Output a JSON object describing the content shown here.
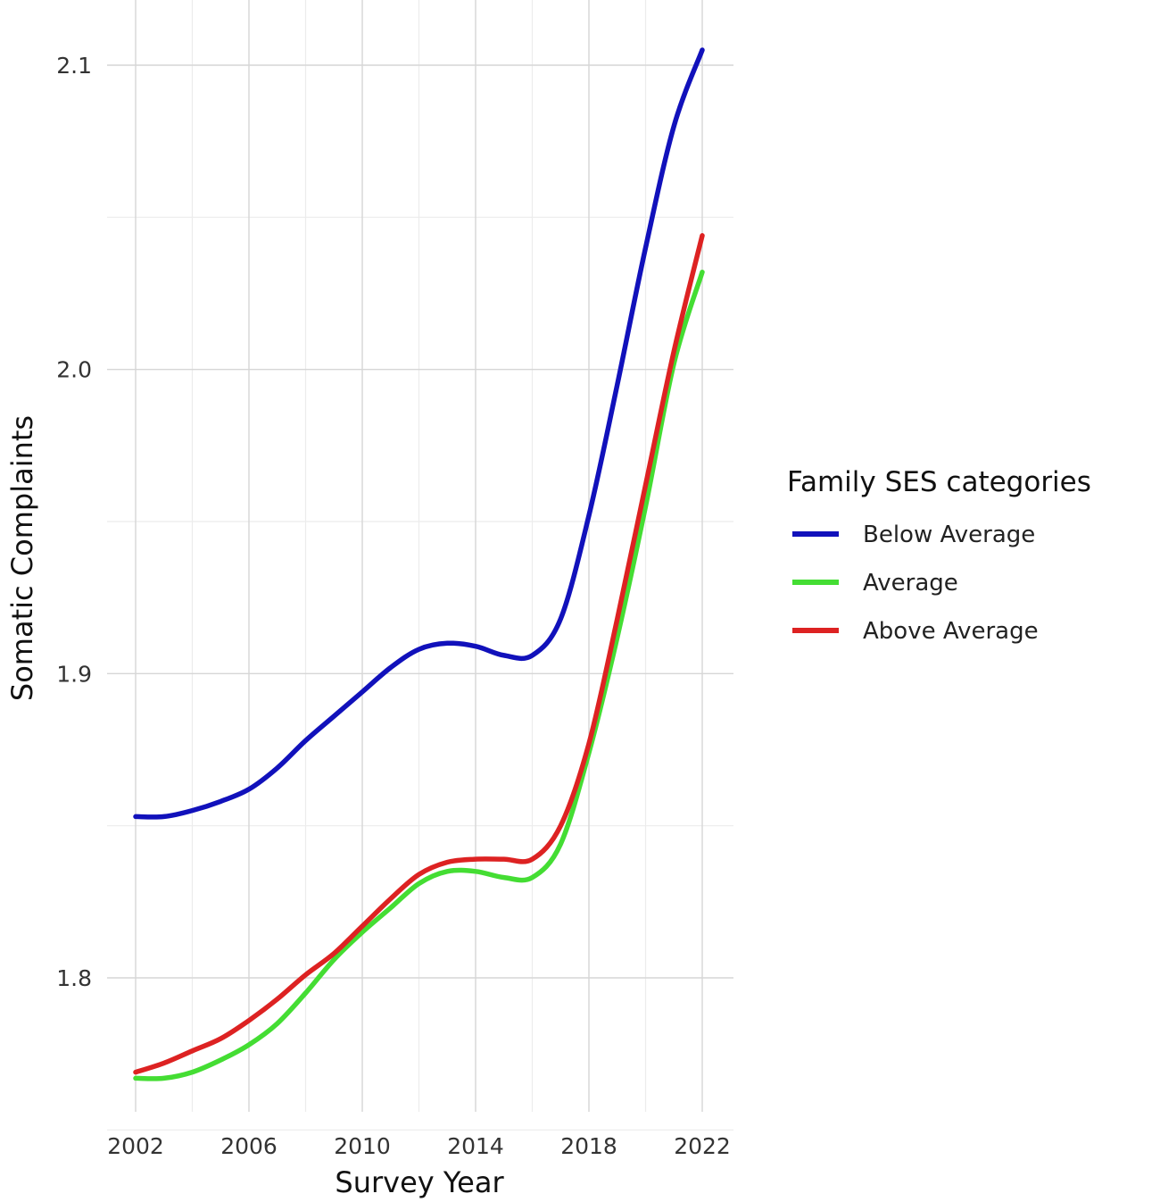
{
  "chart_data": {
    "type": "line",
    "xlabel": "Survey Year",
    "ylabel": "Somatic Complaints",
    "xlim": [
      2002,
      2022
    ],
    "ylim": [
      1.76,
      2.12
    ],
    "x_ticks": [
      2002,
      2006,
      2010,
      2014,
      2018,
      2022
    ],
    "x_tick_labels": [
      "2002",
      "2006",
      "2010",
      "2014",
      "2018",
      "2022"
    ],
    "y_ticks": [
      1.8,
      1.9,
      2.0,
      2.1
    ],
    "y_tick_labels": [
      "1.8",
      "1.9",
      "2.0",
      "2.1"
    ],
    "grid": true,
    "legend": {
      "title": "Family SES categories",
      "placement": "right"
    },
    "x": [
      2002,
      2003,
      2004,
      2005,
      2006,
      2007,
      2008,
      2009,
      2010,
      2011,
      2012,
      2013,
      2014,
      2015,
      2016,
      2017,
      2018,
      2019,
      2020,
      2021,
      2022
    ],
    "series": [
      {
        "name": "Below Average",
        "color": "#1111bb",
        "values": [
          1.853,
          1.853,
          1.855,
          1.858,
          1.862,
          1.869,
          1.878,
          1.886,
          1.894,
          1.902,
          1.908,
          1.91,
          1.909,
          1.906,
          1.906,
          1.918,
          1.952,
          1.995,
          2.04,
          2.08,
          2.105
        ]
      },
      {
        "name": "Average",
        "color": "#44dd33",
        "values": [
          1.767,
          1.767,
          1.769,
          1.773,
          1.778,
          1.785,
          1.795,
          1.806,
          1.815,
          1.823,
          1.831,
          1.835,
          1.835,
          1.833,
          1.833,
          1.844,
          1.874,
          1.912,
          1.955,
          2.002,
          2.032
        ]
      },
      {
        "name": "Above Average",
        "color": "#dd2222",
        "values": [
          1.769,
          1.772,
          1.776,
          1.78,
          1.786,
          1.793,
          1.801,
          1.808,
          1.817,
          1.826,
          1.834,
          1.838,
          1.839,
          1.839,
          1.839,
          1.85,
          1.877,
          1.918,
          1.962,
          2.006,
          2.044
        ]
      }
    ]
  }
}
